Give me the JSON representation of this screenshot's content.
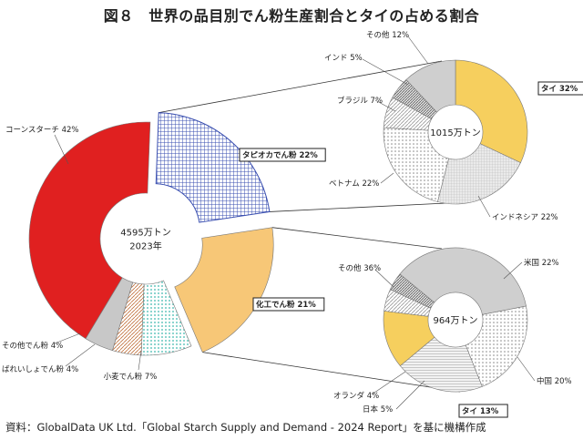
{
  "title": "図８　世界の品目別でん粉生産割合とタイの占める割合",
  "source": "資料：GlobalData UK Ltd.「Global Starch Supply and Demand - 2024 Report」を基に機構作成",
  "chart_data": [
    {
      "type": "pie",
      "center_text": [
        "4595万トン",
        "2023年"
      ],
      "slices": [
        {
          "label": "コーンスターチ 42%",
          "value": 42,
          "color": "#e02020",
          "pattern": "none",
          "exploded": false
        },
        {
          "label": "タピオカでん粉 22%",
          "value": 22,
          "color": "#3a4fb0",
          "pattern": "grid",
          "exploded": true,
          "boxed": true
        },
        {
          "label": "化工でん粉 21%",
          "value": 21,
          "color": "#f7c777",
          "pattern": "none",
          "exploded": true,
          "boxed": true
        },
        {
          "label": "小麦でん粉 7%",
          "value": 7,
          "color": "#7fcfc9",
          "pattern": "dots",
          "exploded": false
        },
        {
          "label": "ばれいしょでん粉 4%",
          "value": 4,
          "color": "#d08a5a",
          "pattern": "diag",
          "exploded": false
        },
        {
          "label": "その他でん粉 4%",
          "value": 4,
          "color": "#c8c8c8",
          "pattern": "none",
          "exploded": false
        }
      ]
    },
    {
      "type": "pie",
      "center_text": [
        "1015万トン"
      ],
      "slices": [
        {
          "label": "タイ 32%",
          "value": 32,
          "color": "#f6cf5e",
          "pattern": "none",
          "boxed": true
        },
        {
          "label": "インドネシア 22%",
          "value": 22,
          "color": "#d8d8d8",
          "pattern": "fine"
        },
        {
          "label": "ベトナム 22%",
          "value": 22,
          "color": "#e4e4e4",
          "pattern": "dots"
        },
        {
          "label": "ブラジル 7%",
          "value": 7,
          "color": "#e8e8e8",
          "pattern": "diag"
        },
        {
          "label": "インド 5%",
          "value": 5,
          "color": "#9a9a9a",
          "pattern": "diagdense"
        },
        {
          "label": "その他 12%",
          "value": 12,
          "color": "#cfcfcf",
          "pattern": "none"
        }
      ]
    },
    {
      "type": "pie",
      "center_text": [
        "964万トン"
      ],
      "slices": [
        {
          "label": "米国 22%",
          "value": 22,
          "color": "#eeeeee",
          "pattern": "dots"
        },
        {
          "label": "中国 20%",
          "value": 20,
          "color": "#e0e0e0",
          "pattern": "hlines"
        },
        {
          "label": "タイ 13%",
          "value": 13,
          "color": "#f6cf5e",
          "pattern": "none",
          "boxed": true
        },
        {
          "label": "日本 5%",
          "value": 5,
          "color": "#e8e8e8",
          "pattern": "diag"
        },
        {
          "label": "オランダ 4%",
          "value": 4,
          "color": "#a8a8a8",
          "pattern": "diagdense"
        },
        {
          "label": "その他 36%",
          "value": 36,
          "color": "#cfcfcf",
          "pattern": "none"
        }
      ]
    }
  ]
}
